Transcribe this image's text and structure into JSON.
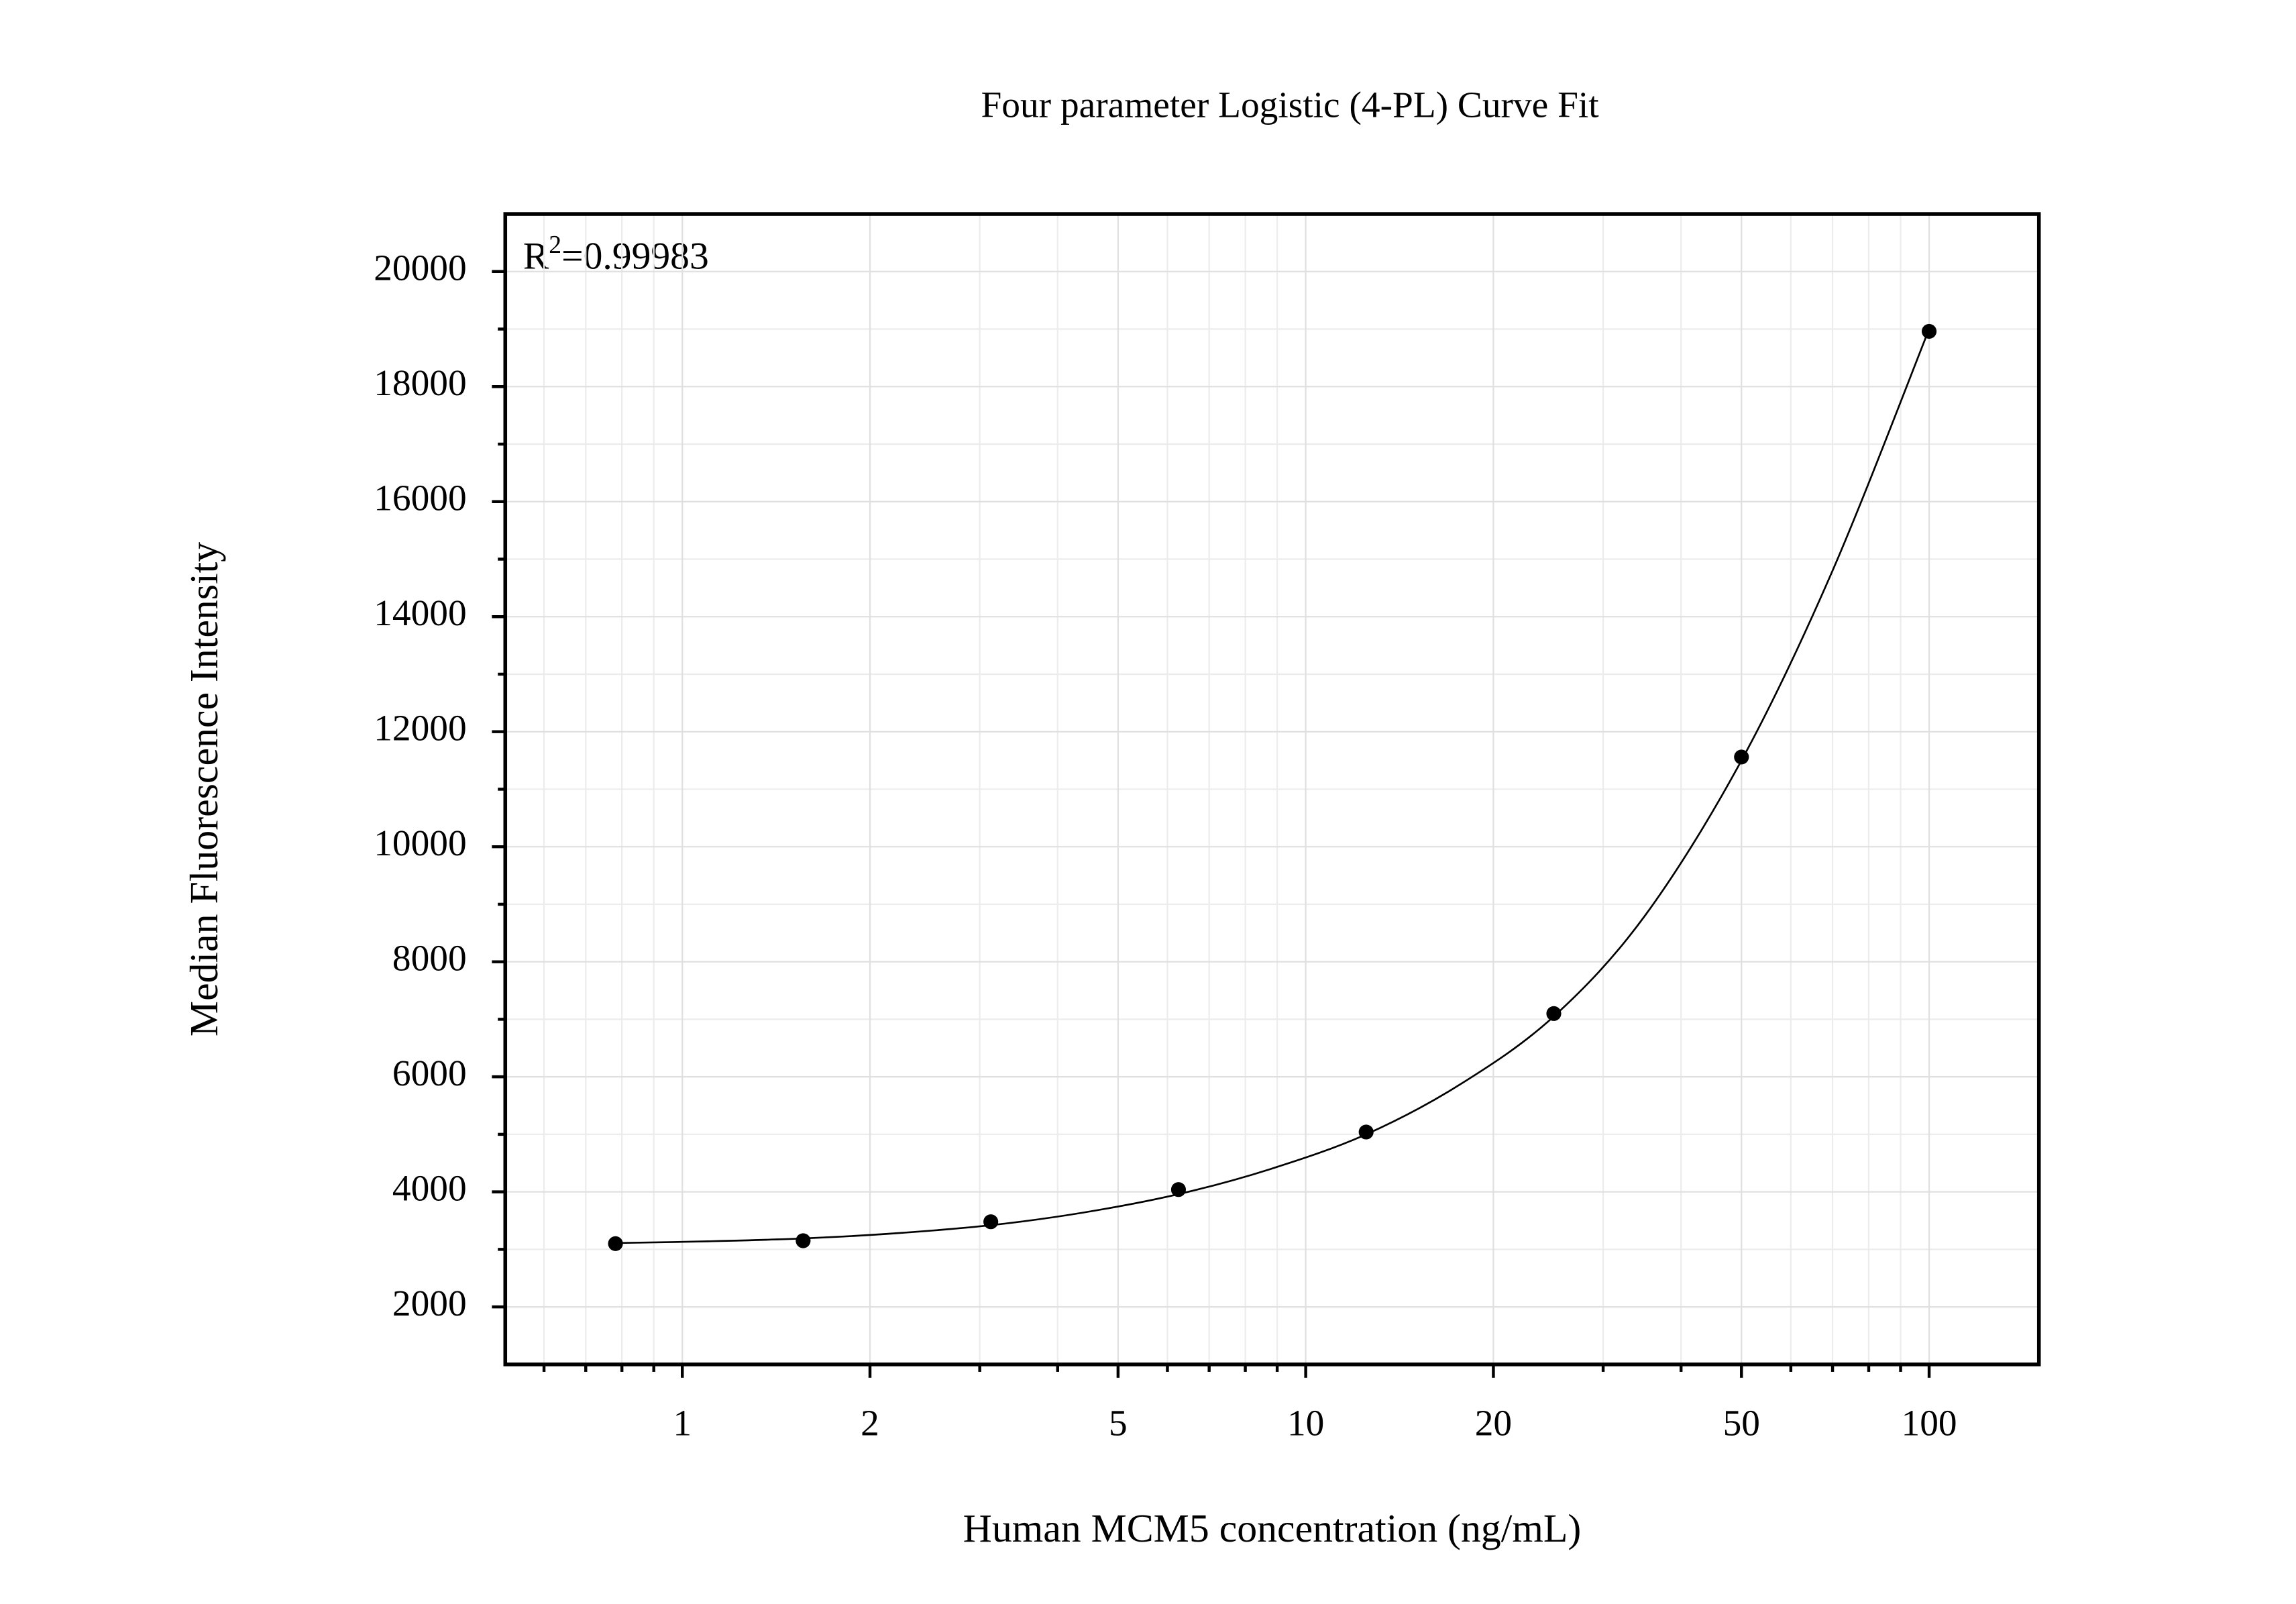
{
  "chart_data": {
    "type": "scatter",
    "title": "Four parameter Logistic (4-PL) Curve Fit",
    "x_label": "Human MCM5 concentration (ng/mL)",
    "y_label": "Median Fluorescence Intensity",
    "annotation": {
      "base": "R",
      "sup": "2",
      "text": "=0.99983"
    },
    "x_log": true,
    "grid": true,
    "color": "#000000",
    "x": [
      0.78125,
      1.5625,
      3.125,
      6.25,
      12.5,
      25,
      50,
      100
    ],
    "values": [
      3100,
      3150,
      3480,
      4040,
      5040,
      7100,
      11560,
      18960
    ],
    "fit_curve": {
      "x": [
        0.78125,
        1.1,
        1.5625,
        2.2,
        3.125,
        4.4,
        6.25,
        8.8,
        12.5,
        17.7,
        25,
        35,
        50,
        70,
        100
      ],
      "y": [
        3110,
        3140,
        3190,
        3280,
        3420,
        3640,
        3960,
        4400,
        5000,
        5870,
        7050,
        8800,
        11500,
        14800,
        19000
      ]
    },
    "xlim": [
      0.52,
      150
    ],
    "ylim": [
      1000,
      21000
    ],
    "xticks": [
      1,
      2,
      5,
      10,
      20,
      50,
      100
    ],
    "xticks_minor": [
      0.6,
      0.7,
      0.8,
      0.9,
      3,
      4,
      6,
      7,
      8,
      9,
      30,
      40,
      60,
      70,
      80,
      90
    ],
    "yticks": [
      2000,
      4000,
      6000,
      8000,
      10000,
      12000,
      14000,
      16000,
      18000,
      20000
    ],
    "yticks_minor": [
      3000,
      5000,
      7000,
      9000,
      11000,
      13000,
      15000,
      17000,
      19000
    ]
  }
}
